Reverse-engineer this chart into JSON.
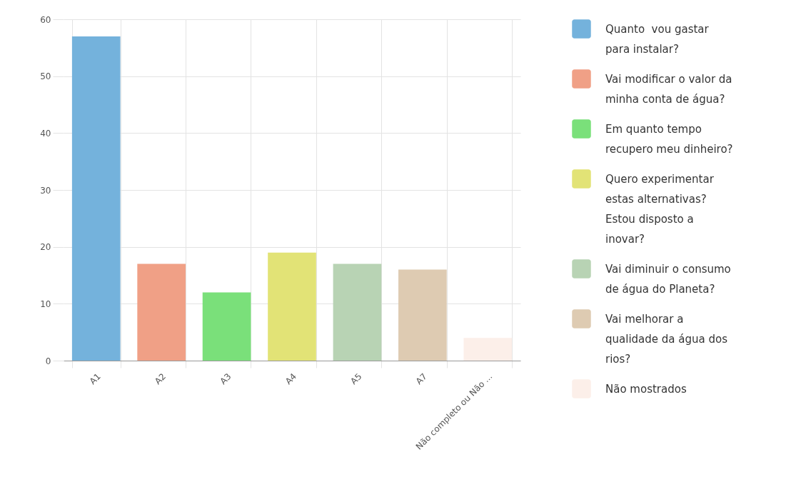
{
  "chart_data": {
    "type": "bar",
    "categories": [
      "A1",
      "A2",
      "A3",
      "A4",
      "A5",
      "A7",
      "Não completo ou Não ..."
    ],
    "series": [
      {
        "name": "Quanto  vou gastar para instalar?",
        "color": "#74b2dc",
        "values": [
          57,
          null,
          null,
          null,
          null,
          null,
          null
        ]
      },
      {
        "name": "Vai modificar o valor da minha conta de água?",
        "color": "#f0a086",
        "values": [
          null,
          17,
          null,
          null,
          null,
          null,
          null
        ]
      },
      {
        "name": "Em quanto tempo recupero meu dinheiro?",
        "color": "#7ae07a",
        "values": [
          null,
          null,
          12,
          null,
          null,
          null,
          null
        ]
      },
      {
        "name": "Quero experimentar estas alternativas? Estou disposto a inovar?",
        "color": "#e2e376",
        "values": [
          null,
          null,
          null,
          19,
          null,
          null,
          null
        ]
      },
      {
        "name": "Vai diminuir o consumo de água do Planeta?",
        "color": "#b8d3b4",
        "values": [
          null,
          null,
          null,
          null,
          17,
          null,
          null
        ]
      },
      {
        "name": "Vai melhorar a qualidade da água dos rios?",
        "color": "#decbb2",
        "values": [
          null,
          null,
          null,
          null,
          null,
          16,
          null
        ]
      },
      {
        "name": "Não mostrados",
        "color": "#fcefe9",
        "values": [
          null,
          null,
          null,
          null,
          null,
          null,
          4
        ]
      }
    ],
    "stacked": true,
    "ylim": [
      0,
      60
    ],
    "yticks": [
      0,
      10,
      20,
      30,
      40,
      50,
      60
    ],
    "grid": true,
    "legend": "right"
  }
}
